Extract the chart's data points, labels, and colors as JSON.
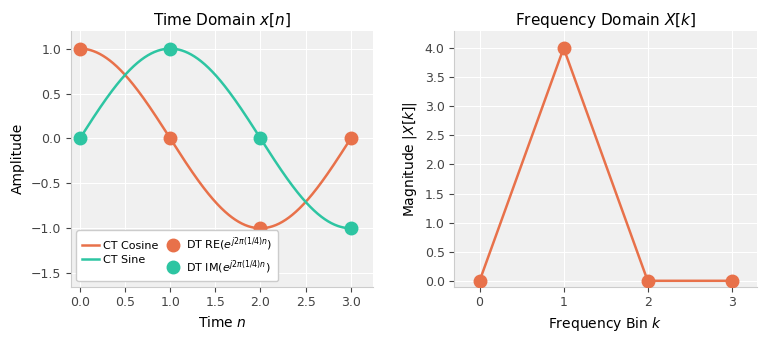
{
  "left_title": "Time Domain $x[n]$",
  "right_title": "Frequency Domain $X[k]$",
  "left_xlabel": "Time $n$",
  "left_ylabel": "Amplitude",
  "right_xlabel": "Frequency Bin $k$",
  "right_ylabel": "Magnitude $|X[k]|$",
  "ct_color": "#E8714A",
  "sine_color": "#2DC5A2",
  "freq_color": "#E8714A",
  "n_samples": 4,
  "freq_k": [
    0,
    1,
    2,
    3
  ],
  "freq_mag": [
    0.0,
    4.0,
    0.0,
    0.0
  ],
  "left_ylim": [
    -1.65,
    1.2
  ],
  "left_xlim": [
    -0.1,
    3.25
  ],
  "right_ylim": [
    -0.1,
    4.3
  ],
  "right_xlim": [
    -0.3,
    3.3
  ],
  "legend_ct_cosine": "CT Cosine",
  "legend_ct_sine": "CT Sine",
  "legend_dt_re": "DT RE($e^{j2\\pi(1/4)n}$)",
  "legend_dt_im": "DT IM($e^{j2\\pi(1/4)n}$)",
  "marker_size": 9,
  "line_width": 1.8,
  "bg_color": "#f0f0f0"
}
